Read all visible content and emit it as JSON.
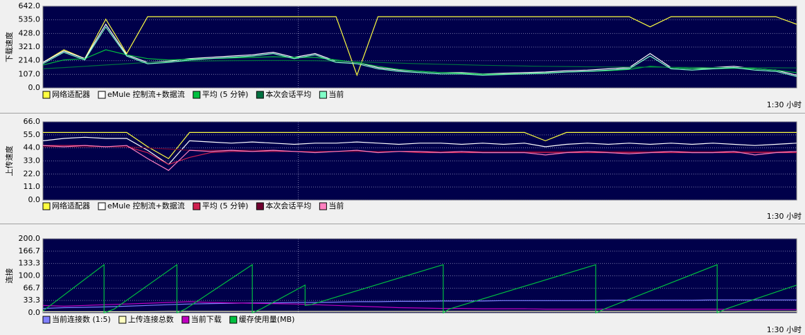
{
  "chart_data": [
    {
      "type": "line",
      "ylabel": "下载速度",
      "xlabel": "1:30 小时",
      "grid": true,
      "legend": "bottom-left",
      "x": [
        0,
        2.5,
        5,
        7.5,
        10,
        12.5,
        15,
        17.5,
        20,
        22.5,
        25,
        27.5,
        30,
        32.5,
        35,
        37.5,
        40,
        42.5,
        45,
        47.5,
        50,
        52.5,
        55,
        57.5,
        60,
        62.5,
        65,
        67.5,
        70,
        72.5,
        75,
        77.5,
        80,
        82.5,
        85,
        87.5,
        90
      ],
      "xlim": [
        0,
        90
      ],
      "ylim": [
        0,
        642
      ],
      "yticks": [
        {
          "value": 0,
          "label": "0.0"
        },
        {
          "value": 107,
          "label": "107.0"
        },
        {
          "value": 214,
          "label": "214.0"
        },
        {
          "value": 321,
          "label": "321.0"
        },
        {
          "value": 428,
          "label": "428.0"
        },
        {
          "value": 535,
          "label": "535.0"
        },
        {
          "value": 642,
          "label": "642.0"
        }
      ],
      "series": [
        {
          "name": "网络适配器",
          "color": "#ffff40",
          "values": [
            200,
            300,
            230,
            540,
            270,
            560,
            560,
            560,
            560,
            560,
            560,
            560,
            560,
            560,
            560,
            100,
            560,
            560,
            560,
            560,
            560,
            560,
            560,
            560,
            560,
            560,
            560,
            560,
            560,
            480,
            560,
            560,
            560,
            560,
            560,
            560,
            500
          ]
        },
        {
          "name": "eMule 控制流+数据流",
          "color": "#ffffff",
          "values": [
            200,
            290,
            230,
            500,
            260,
            200,
            210,
            230,
            240,
            250,
            260,
            280,
            240,
            270,
            210,
            200,
            160,
            140,
            130,
            120,
            120,
            110,
            115,
            120,
            125,
            135,
            140,
            150,
            160,
            270,
            160,
            150,
            160,
            170,
            150,
            140,
            100
          ]
        },
        {
          "name": "平均 (5 分钟)",
          "color": "#00c040",
          "values": [
            180,
            220,
            230,
            300,
            260,
            230,
            220,
            225,
            230,
            235,
            240,
            245,
            240,
            240,
            220,
            200,
            170,
            145,
            130,
            120,
            115,
            108,
            108,
            112,
            118,
            125,
            130,
            135,
            145,
            170,
            160,
            150,
            150,
            155,
            150,
            140,
            120
          ]
        },
        {
          "name": "本次会话平均",
          "color": "#007040",
          "values": [
            150,
            160,
            170,
            180,
            190,
            200,
            205,
            210,
            212,
            214,
            215,
            216,
            215,
            214,
            210,
            205,
            200,
            195,
            190,
            186,
            182,
            178,
            175,
            172,
            170,
            168,
            166,
            165,
            164,
            163,
            162,
            161,
            160,
            160,
            159,
            158,
            157
          ]
        },
        {
          "name": "当前",
          "color": "#80ffc8",
          "values": [
            190,
            280,
            220,
            480,
            250,
            190,
            200,
            220,
            230,
            240,
            250,
            270,
            230,
            260,
            200,
            190,
            150,
            130,
            120,
            110,
            110,
            100,
            105,
            110,
            115,
            125,
            130,
            140,
            150,
            250,
            150,
            140,
            150,
            160,
            140,
            130,
            90
          ]
        }
      ]
    },
    {
      "type": "line",
      "ylabel": "上传速度",
      "xlabel": "1:30 小时",
      "grid": true,
      "legend": "bottom-left",
      "x": [
        0,
        2.5,
        5,
        7.5,
        10,
        12.5,
        15,
        17.5,
        20,
        22.5,
        25,
        27.5,
        30,
        32.5,
        35,
        37.5,
        40,
        42.5,
        45,
        47.5,
        50,
        52.5,
        55,
        57.5,
        60,
        62.5,
        65,
        67.5,
        70,
        72.5,
        75,
        77.5,
        80,
        82.5,
        85,
        87.5,
        90
      ],
      "xlim": [
        0,
        90
      ],
      "ylim": [
        0,
        66
      ],
      "yticks": [
        {
          "value": 0,
          "label": "0.0"
        },
        {
          "value": 11,
          "label": "11.0"
        },
        {
          "value": 22,
          "label": "22.0"
        },
        {
          "value": 33,
          "label": "33.0"
        },
        {
          "value": 44,
          "label": "44.0"
        },
        {
          "value": 55,
          "label": "55.0"
        },
        {
          "value": 66,
          "label": "66.0"
        }
      ],
      "series": [
        {
          "name": "网络适配器",
          "color": "#ffff40",
          "values": [
            57,
            57,
            57,
            57,
            57,
            45,
            35,
            57,
            57,
            57,
            57,
            57,
            57,
            57,
            57,
            57,
            57,
            57,
            57,
            57,
            57,
            57,
            57,
            57,
            50,
            57,
            57,
            57,
            57,
            57,
            57,
            57,
            57,
            57,
            57,
            57,
            57
          ]
        },
        {
          "name": "eMule 控制流+数据流",
          "color": "#ffffff",
          "values": [
            50,
            52,
            53,
            52,
            52,
            42,
            30,
            50,
            49,
            48,
            49,
            48,
            47,
            48,
            48,
            49,
            48,
            47,
            48,
            48,
            47,
            48,
            47,
            48,
            45,
            47,
            48,
            47,
            48,
            47,
            48,
            47,
            48,
            47,
            46,
            47,
            48
          ]
        },
        {
          "name": "平均 (5 分钟)",
          "color": "#d02050",
          "values": [
            46,
            46,
            46,
            45,
            45,
            40,
            30,
            36,
            40,
            41,
            41,
            41,
            41,
            41,
            41,
            41,
            41,
            41,
            40,
            40,
            40,
            40,
            40,
            40,
            40,
            40,
            40,
            40,
            40,
            40,
            40,
            40,
            40,
            40,
            40,
            40,
            40
          ]
        },
        {
          "name": "本次会话平均",
          "color": "#700030",
          "values": [
            45,
            45,
            45,
            45,
            45,
            44,
            43,
            42,
            42,
            42,
            42,
            42,
            41,
            41,
            41,
            41,
            41,
            41,
            41,
            41,
            41,
            41,
            41,
            41,
            41,
            41,
            41,
            41,
            41,
            41,
            41,
            41,
            41,
            41,
            41,
            41,
            41
          ]
        },
        {
          "name": "当前",
          "color": "#ff80c0",
          "values": [
            46,
            45,
            46,
            45,
            46,
            35,
            25,
            42,
            41,
            42,
            41,
            42,
            41,
            40,
            41,
            42,
            40,
            41,
            41,
            40,
            41,
            40,
            40,
            40,
            38,
            40,
            41,
            40,
            39,
            40,
            41,
            40,
            40,
            41,
            38,
            40,
            41
          ]
        }
      ]
    },
    {
      "type": "line",
      "ylabel": "连接",
      "xlabel": "1:30 小时",
      "grid": true,
      "legend": "bottom-left",
      "x": [
        0,
        2.5,
        5,
        7.5,
        10,
        12.5,
        15,
        17.5,
        20,
        22.5,
        25,
        27.5,
        30,
        32.5,
        35,
        37.5,
        40,
        42.5,
        45,
        47.5,
        50,
        52.5,
        55,
        57.5,
        60,
        62.5,
        65,
        67.5,
        70,
        72.5,
        75,
        77.5,
        80,
        82.5,
        85,
        87.5,
        90
      ],
      "xlim": [
        0,
        90
      ],
      "ylim": [
        0,
        200
      ],
      "yticks": [
        {
          "value": 0,
          "label": "0.0"
        },
        33.3,
        66.7,
        {
          "value": 100,
          "label": "100.0"
        },
        133.3,
        166.7,
        {
          "value": 200,
          "label": "200.0"
        }
      ],
      "series": [
        {
          "name": "当前连接数 (1:5)",
          "color": "#8080ff",
          "values": [
            12,
            14,
            15,
            16,
            18,
            20,
            22,
            24,
            25,
            26,
            27,
            27,
            28,
            28,
            29,
            30,
            30,
            31,
            31,
            32,
            32,
            32,
            33,
            33,
            33,
            33,
            33,
            34,
            34,
            34,
            34,
            34,
            35,
            35,
            35,
            35,
            35
          ]
        },
        {
          "name": "上传连接总数",
          "color": "#ffffc0",
          "values": [
            3,
            3,
            3,
            3,
            3,
            3,
            4,
            4,
            4,
            4,
            4,
            4,
            4,
            4,
            4,
            4,
            4,
            4,
            4,
            4,
            4,
            4,
            4,
            4,
            4,
            4,
            4,
            4,
            4,
            4,
            4,
            4,
            4,
            4,
            4,
            4,
            4
          ]
        },
        {
          "name": "当前下载",
          "color": "#c000c0",
          "values": [
            20,
            18,
            20,
            22,
            24,
            26,
            28,
            30,
            28,
            27,
            26,
            25,
            24,
            22,
            20,
            18,
            16,
            14,
            13,
            12,
            12,
            11,
            11,
            11,
            10,
            10,
            10,
            10,
            10,
            10,
            10,
            10,
            10,
            9,
            9,
            9,
            9
          ]
        },
        {
          "name": "缓存使用量(MB)",
          "color": "#00c040",
          "x": [
            0,
            7.3,
            7.3,
            8.5,
            16,
            16,
            17,
            25,
            25,
            26,
            31.3,
            31.3,
            32,
            47.8,
            47.8,
            48.5,
            66,
            66,
            67,
            80.5,
            80.5,
            81.5,
            90
          ],
          "values": [
            5,
            130,
            0,
            10,
            130,
            0,
            10,
            130,
            0,
            10,
            75,
            20,
            22,
            130,
            0,
            10,
            130,
            0,
            10,
            130,
            0,
            10,
            75
          ]
        }
      ]
    }
  ]
}
